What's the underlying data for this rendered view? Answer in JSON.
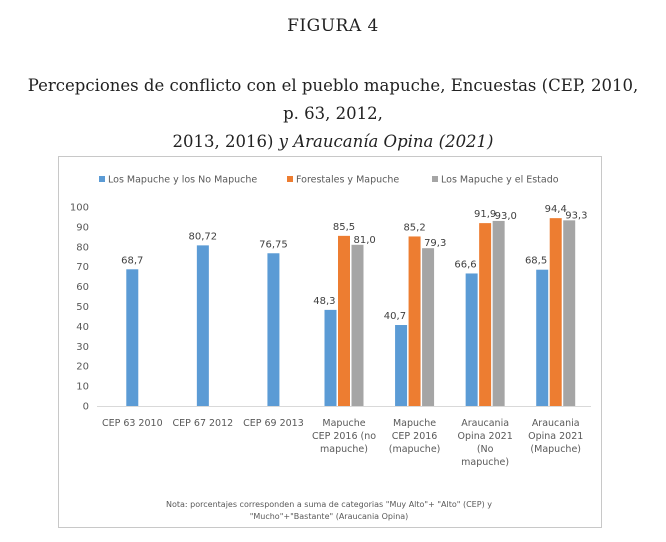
{
  "figure_label": "FIGURA 4",
  "title": {
    "part1": "Percepciones de conflicto con el pueblo mapuche, Encuestas (CEP, 2010, p. 63, 2012,",
    "part2": "2013, 2016) ",
    "part3": "y Araucanía Opina (2021)"
  },
  "chart_data": {
    "type": "bar",
    "categories": [
      [
        "CEP 63 2010"
      ],
      [
        "CEP 67 2012"
      ],
      [
        "CEP 69 2013"
      ],
      [
        "Mapuche",
        "CEP 2016 (no",
        "mapuche)"
      ],
      [
        "Mapuche",
        "CEP 2016",
        "(mapuche)"
      ],
      [
        "Araucania",
        "Opina 2021",
        "(No",
        "mapuche)"
      ],
      [
        "Araucania",
        "Opina 2021",
        "(Mapuche)"
      ]
    ],
    "series": [
      {
        "name": "Los Mapuche y los No Mapuche",
        "color": "#5b9bd5",
        "values": [
          68.7,
          80.72,
          76.75,
          48.3,
          40.7,
          66.6,
          68.5
        ],
        "labels": [
          "68,7",
          "80,72",
          "76,75",
          "48,3",
          "40,7",
          "66,6",
          "68,5"
        ]
      },
      {
        "name": "Forestales y Mapuche",
        "color": "#ed7d31",
        "values": [
          null,
          null,
          null,
          85.5,
          85.2,
          91.9,
          94.4
        ],
        "labels": [
          "",
          "",
          "",
          "85,5",
          "85,2",
          "91,9",
          "94,4"
        ]
      },
      {
        "name": "Los Mapuche y el Estado",
        "color": "#a5a5a5",
        "values": [
          null,
          null,
          null,
          81.0,
          79.3,
          93.0,
          93.3
        ],
        "labels": [
          "",
          "",
          "",
          "81,0",
          "79,3",
          "93,0",
          "93,3"
        ]
      }
    ],
    "ylim": [
      0,
      100
    ],
    "yticks": [
      0,
      10,
      20,
      30,
      40,
      50,
      60,
      70,
      80,
      90,
      100
    ],
    "grid": false,
    "legend_position": "top",
    "note": [
      "Nota: porcentajes corresponden a suma de categorias \"Muy Alto\"+ \"Alto\" (CEP) y",
      "\"Mucho\"+\"Bastante\" (Araucania Opina)"
    ]
  }
}
